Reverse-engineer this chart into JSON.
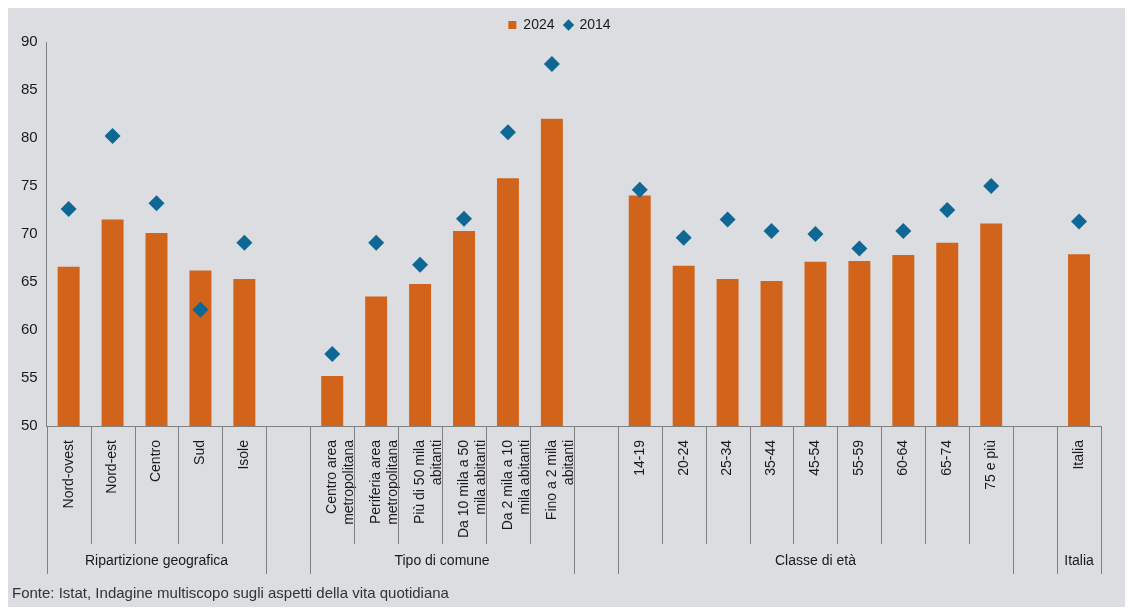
{
  "chart_data": {
    "type": "bar",
    "categories": [
      "Nord-ovest",
      "Nord-est",
      "Centro",
      "Sud",
      "Isole",
      null,
      "Centro area metropolitana",
      "Periferia area metropolitana",
      "Più di 50 mila abitanti",
      "Da 10 mila a 50 mila abitanti",
      "Da 2 mila a 10 mila abitanti",
      "Fino a 2 mila abitanti",
      null,
      "14-19",
      "20-24",
      "25-34",
      "35-44",
      "45-54",
      "55-59",
      "60-64",
      "65-74",
      "75 e più",
      null,
      "Italia"
    ],
    "series": [
      {
        "name": "2024",
        "color": "#d2631b",
        "values": [
          66.6,
          71.5,
          70.1,
          66.2,
          65.3,
          null,
          55.2,
          63.5,
          64.8,
          70.3,
          75.8,
          82.0,
          null,
          74.0,
          66.7,
          65.3,
          65.1,
          67.1,
          67.2,
          67.8,
          69.1,
          71.1,
          null,
          67.9
        ]
      },
      {
        "name": "2014",
        "type": "scatter",
        "color": "#0e6794",
        "marker": "diamond",
        "values": [
          72.6,
          80.2,
          73.2,
          62.1,
          69.1,
          null,
          57.5,
          69.1,
          66.8,
          71.6,
          80.6,
          87.7,
          null,
          74.6,
          69.6,
          71.5,
          70.3,
          70.0,
          68.5,
          70.3,
          72.5,
          75.0,
          null,
          71.3
        ]
      }
    ],
    "ylim": [
      50,
      90
    ],
    "yticks": [
      50,
      55,
      60,
      65,
      70,
      75,
      80,
      85,
      90
    ],
    "grid": false,
    "legend": "top",
    "annotations": [
      "Ripartizione geografica",
      "Tipo di comune",
      "Classe di età",
      "Italia",
      "Fonte: Istat, Indagine multiscopo sugli aspetti della vita quotidiana"
    ]
  }
}
